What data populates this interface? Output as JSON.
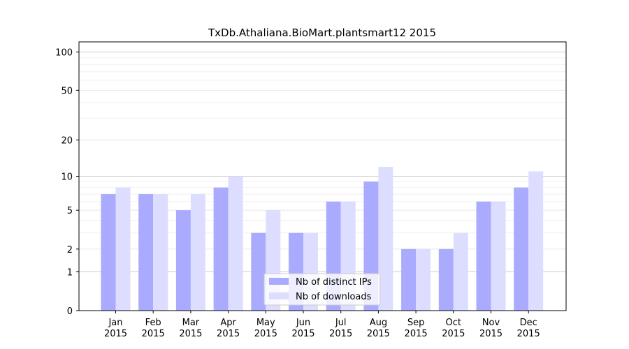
{
  "chart_data": {
    "type": "bar",
    "title": "TxDb.Athaliana.BioMart.plantsmart12 2015",
    "xlabel": "",
    "ylabel": "",
    "yscale": "log(1+y)",
    "ylim": [
      0,
      120
    ],
    "yticks": [
      0,
      1,
      2,
      5,
      10,
      20,
      50,
      100
    ],
    "grid": true,
    "legend_position": "bottom-center",
    "categories": [
      [
        "Jan",
        "2015"
      ],
      [
        "Feb",
        "2015"
      ],
      [
        "Mar",
        "2015"
      ],
      [
        "Apr",
        "2015"
      ],
      [
        "May",
        "2015"
      ],
      [
        "Jun",
        "2015"
      ],
      [
        "Jul",
        "2015"
      ],
      [
        "Aug",
        "2015"
      ],
      [
        "Sep",
        "2015"
      ],
      [
        "Oct",
        "2015"
      ],
      [
        "Nov",
        "2015"
      ],
      [
        "Dec",
        "2015"
      ]
    ],
    "series": [
      {
        "name": "Nb of distinct IPs",
        "color": "#aaaaff",
        "values": [
          7,
          7,
          5,
          8,
          3,
          3,
          6,
          9,
          2,
          2,
          6,
          8
        ]
      },
      {
        "name": "Nb of downloads",
        "color": "#ddddff",
        "values": [
          8,
          7,
          7,
          10,
          5,
          3,
          6,
          12,
          2,
          3,
          6,
          11
        ]
      }
    ]
  }
}
